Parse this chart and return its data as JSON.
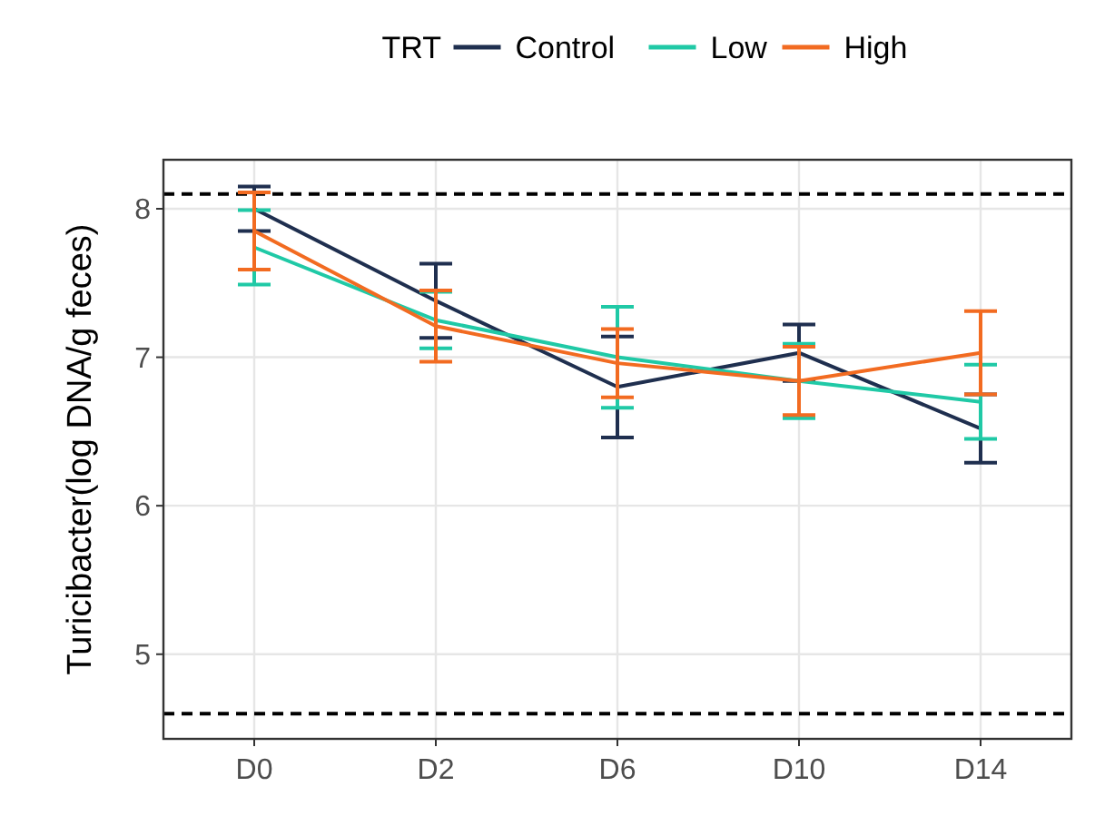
{
  "chart_data": {
    "type": "line",
    "ylabel": "Turicibacter(log DNA/g feces)",
    "legend_title": "TRT",
    "categories": [
      "D0",
      "D2",
      "D6",
      "D10",
      "D14"
    ],
    "series": [
      {
        "name": "Control",
        "color": "#1f2f4f",
        "values": [
          8.0,
          7.38,
          6.8,
          7.03,
          6.52
        ],
        "errors": [
          0.15,
          0.25,
          0.34,
          0.19,
          0.23
        ]
      },
      {
        "name": "Low",
        "color": "#20c9a6",
        "values": [
          7.74,
          7.25,
          7.0,
          6.84,
          6.7
        ],
        "errors": [
          0.25,
          0.19,
          0.34,
          0.25,
          0.25
        ]
      },
      {
        "name": "High",
        "color": "#f26b21",
        "values": [
          7.85,
          7.21,
          6.96,
          6.84,
          7.03
        ],
        "errors": [
          0.26,
          0.24,
          0.23,
          0.23,
          0.28
        ]
      }
    ],
    "ylim": [
      4.43,
      8.33
    ],
    "yticks": [
      5,
      6,
      7,
      8
    ],
    "grid": true,
    "legend": "top",
    "marker": "none",
    "line_style": "solid",
    "ref_lines": [
      {
        "axis": "y",
        "value": 8.1,
        "line_style": "dashed",
        "color": "#000000"
      },
      {
        "axis": "y",
        "value": 4.6,
        "line_style": "dashed",
        "color": "#000000"
      }
    ]
  }
}
